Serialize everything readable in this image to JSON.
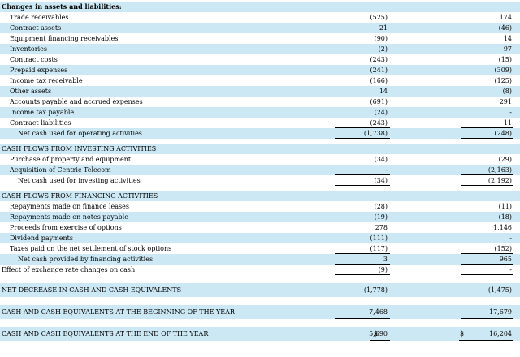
{
  "operating": {
    "header": "Changes in assets and liabilities:",
    "rows": [
      {
        "label": "Trade receivables",
        "v1": "(525)",
        "v2": "174"
      },
      {
        "label": "Contract assets",
        "v1": "21",
        "v2": "(46)"
      },
      {
        "label": "Equipment financing receivables",
        "v1": "(90)",
        "v2": "14"
      },
      {
        "label": "Inventories",
        "v1": "(2)",
        "v2": "97"
      },
      {
        "label": "Contract costs",
        "v1": "(243)",
        "v2": "(15)"
      },
      {
        "label": "Prepaid expenses",
        "v1": "(241)",
        "v2": "(309)"
      },
      {
        "label": "Income tax receivable",
        "v1": "(166)",
        "v2": "(125)"
      },
      {
        "label": "Other assets",
        "v1": "14",
        "v2": "(8)"
      },
      {
        "label": "Accounts payable and accrued expenses",
        "v1": "(691)",
        "v2": "291"
      },
      {
        "label": "Income tax payable",
        "v1": "(24)",
        "v2": "-"
      },
      {
        "label": "Contract liabilities",
        "v1": "(243)",
        "v2": "11"
      }
    ],
    "total": {
      "label": "Net cash used for operating activities",
      "v1": "(1,738)",
      "v2": "(248)"
    }
  },
  "investing": {
    "header": "CASH FLOWS FROM INVESTING ACTIVITIES",
    "rows": [
      {
        "label": "Purchase of property and equipment",
        "v1": "(34)",
        "v2": "(29)"
      },
      {
        "label": "Acquisition of Centric Telecom",
        "v1": "-",
        "v2": "(2,163)"
      }
    ],
    "total": {
      "label": "Net cash used for investing activities",
      "v1": "(34)",
      "v2": "(2,192)"
    }
  },
  "financing": {
    "header": "CASH FLOWS FROM FINANCING ACTIVITIES",
    "rows": [
      {
        "label": "Repayments made on finance leases",
        "v1": "(28)",
        "v2": "(11)"
      },
      {
        "label": "Repayments made on notes payable",
        "v1": "(19)",
        "v2": "(18)"
      },
      {
        "label": "Proceeds from exercise of options",
        "v1": "278",
        "v2": "1,146"
      },
      {
        "label": "Dividend payments",
        "v1": "(111)",
        "v2": "-"
      },
      {
        "label": "Taxes paid on the net settlement of stock options",
        "v1": "(117)",
        "v2": "(152)"
      }
    ],
    "total": {
      "label": "Net cash provided by financing activities",
      "v1": "3",
      "v2": "965"
    }
  },
  "fx": {
    "label": "Effect of exchange rate changes on cash",
    "v1": "(9)",
    "v2": "-"
  },
  "net_decrease": {
    "label": "NET DECREASE IN CASH AND CASH EQUIVALENTS",
    "v1": "(1,778)",
    "v2": "(1,475)"
  },
  "beginning": {
    "label": "CASH AND CASH EQUIVALENTS AT THE BEGINNING OF THE YEAR",
    "v1": "7,468",
    "v2": "17,679"
  },
  "ending": {
    "label": "CASH AND CASH EQUIVALENTS AT THE END OF THE YEAR",
    "currency": "$",
    "v1": "5,690",
    "v2": "16,204"
  }
}
